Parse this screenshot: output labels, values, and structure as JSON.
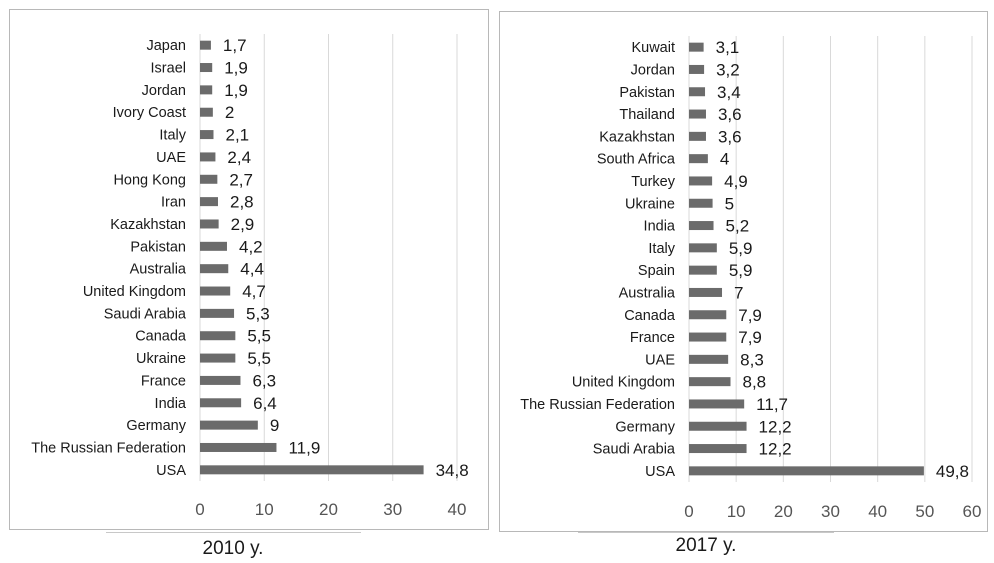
{
  "chart_data": [
    {
      "type": "bar",
      "orientation": "horizontal",
      "title": "",
      "caption": "2010 y.",
      "categories": [
        "USA",
        "The Russian Federation",
        "Germany",
        "India",
        "France",
        "Ukraine",
        "Canada",
        "Saudi Arabia",
        "United Kingdom",
        "Australia",
        "Pakistan",
        "Kazakhstan",
        "Iran",
        "Hong Kong",
        "UAE",
        "Italy",
        "Ivory Coast",
        "Jordan",
        "Israel",
        "Japan"
      ],
      "values": [
        34.8,
        11.9,
        9,
        6.4,
        6.3,
        5.5,
        5.5,
        5.3,
        4.7,
        4.4,
        4.2,
        2.9,
        2.8,
        2.7,
        2.4,
        2.1,
        2,
        1.9,
        1.9,
        1.7
      ],
      "value_labels": [
        "34,8",
        "11,9",
        "9",
        "6,4",
        "6,3",
        "5,5",
        "5,5",
        "5,3",
        "4,7",
        "4,4",
        "4,2",
        "2,9",
        "2,8",
        "2,7",
        "2,4",
        "2,1",
        "2",
        "1,9",
        "1,9",
        "1,7"
      ],
      "xlim": [
        0,
        40
      ],
      "xticks": [
        "0",
        "10",
        "20",
        "30",
        "40"
      ],
      "grid": true,
      "bar_color": "#6b6b6b"
    },
    {
      "type": "bar",
      "orientation": "horizontal",
      "title": "",
      "caption": "2017 y.",
      "categories": [
        "USA",
        "Saudi Arabia",
        "Germany",
        "The Russian Federation",
        "United Kingdom",
        "UAE",
        "France",
        "Canada",
        "Australia",
        "Spain",
        "Italy",
        "India",
        "Ukraine",
        "Turkey",
        "South Africa",
        "Kazakhstan",
        "Thailand",
        "Pakistan",
        "Jordan",
        "Kuwait"
      ],
      "values": [
        49.8,
        12.2,
        12.2,
        11.7,
        8.8,
        8.3,
        7.9,
        7.9,
        7,
        5.9,
        5.9,
        5.2,
        5,
        4.9,
        4,
        3.6,
        3.6,
        3.4,
        3.2,
        3.1
      ],
      "value_labels": [
        "49,8",
        "12,2",
        "12,2",
        "11,7",
        "8,8",
        "8,3",
        "7,9",
        "7,9",
        "7",
        "5,9",
        "5,9",
        "5,2",
        "5",
        "4,9",
        "4",
        "3,6",
        "3,6",
        "3,4",
        "3,2",
        "3,1"
      ],
      "xlim": [
        0,
        60
      ],
      "xticks": [
        "0",
        "10",
        "20",
        "30",
        "40",
        "50",
        "60"
      ],
      "grid": true,
      "bar_color": "#6b6b6b"
    }
  ]
}
